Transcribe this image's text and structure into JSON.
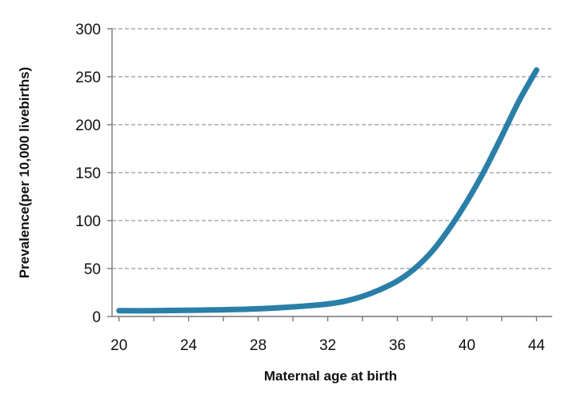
{
  "chart_data": {
    "type": "line",
    "title": "",
    "xlabel": "Maternal age at birth",
    "ylabel": "Prevalence(per 10,000 livebirths)",
    "xlim": [
      20,
      44
    ],
    "ylim": [
      0,
      300
    ],
    "x_ticks": [
      20,
      24,
      28,
      32,
      36,
      40,
      44
    ],
    "y_ticks": [
      0,
      50,
      100,
      150,
      200,
      250,
      300
    ],
    "grid": "horizontal-dashed",
    "line_color": "#2a7fa8",
    "series": [
      {
        "x": [
          20,
          22,
          24,
          26,
          28,
          30,
          32,
          33,
          34,
          35,
          36,
          37,
          38,
          39,
          40,
          41,
          42,
          43,
          44
        ],
        "values": [
          6,
          6,
          6.5,
          7,
          8,
          10,
          13,
          16,
          21,
          28,
          37,
          50,
          68,
          92,
          120,
          152,
          188,
          225,
          257
        ]
      }
    ]
  }
}
